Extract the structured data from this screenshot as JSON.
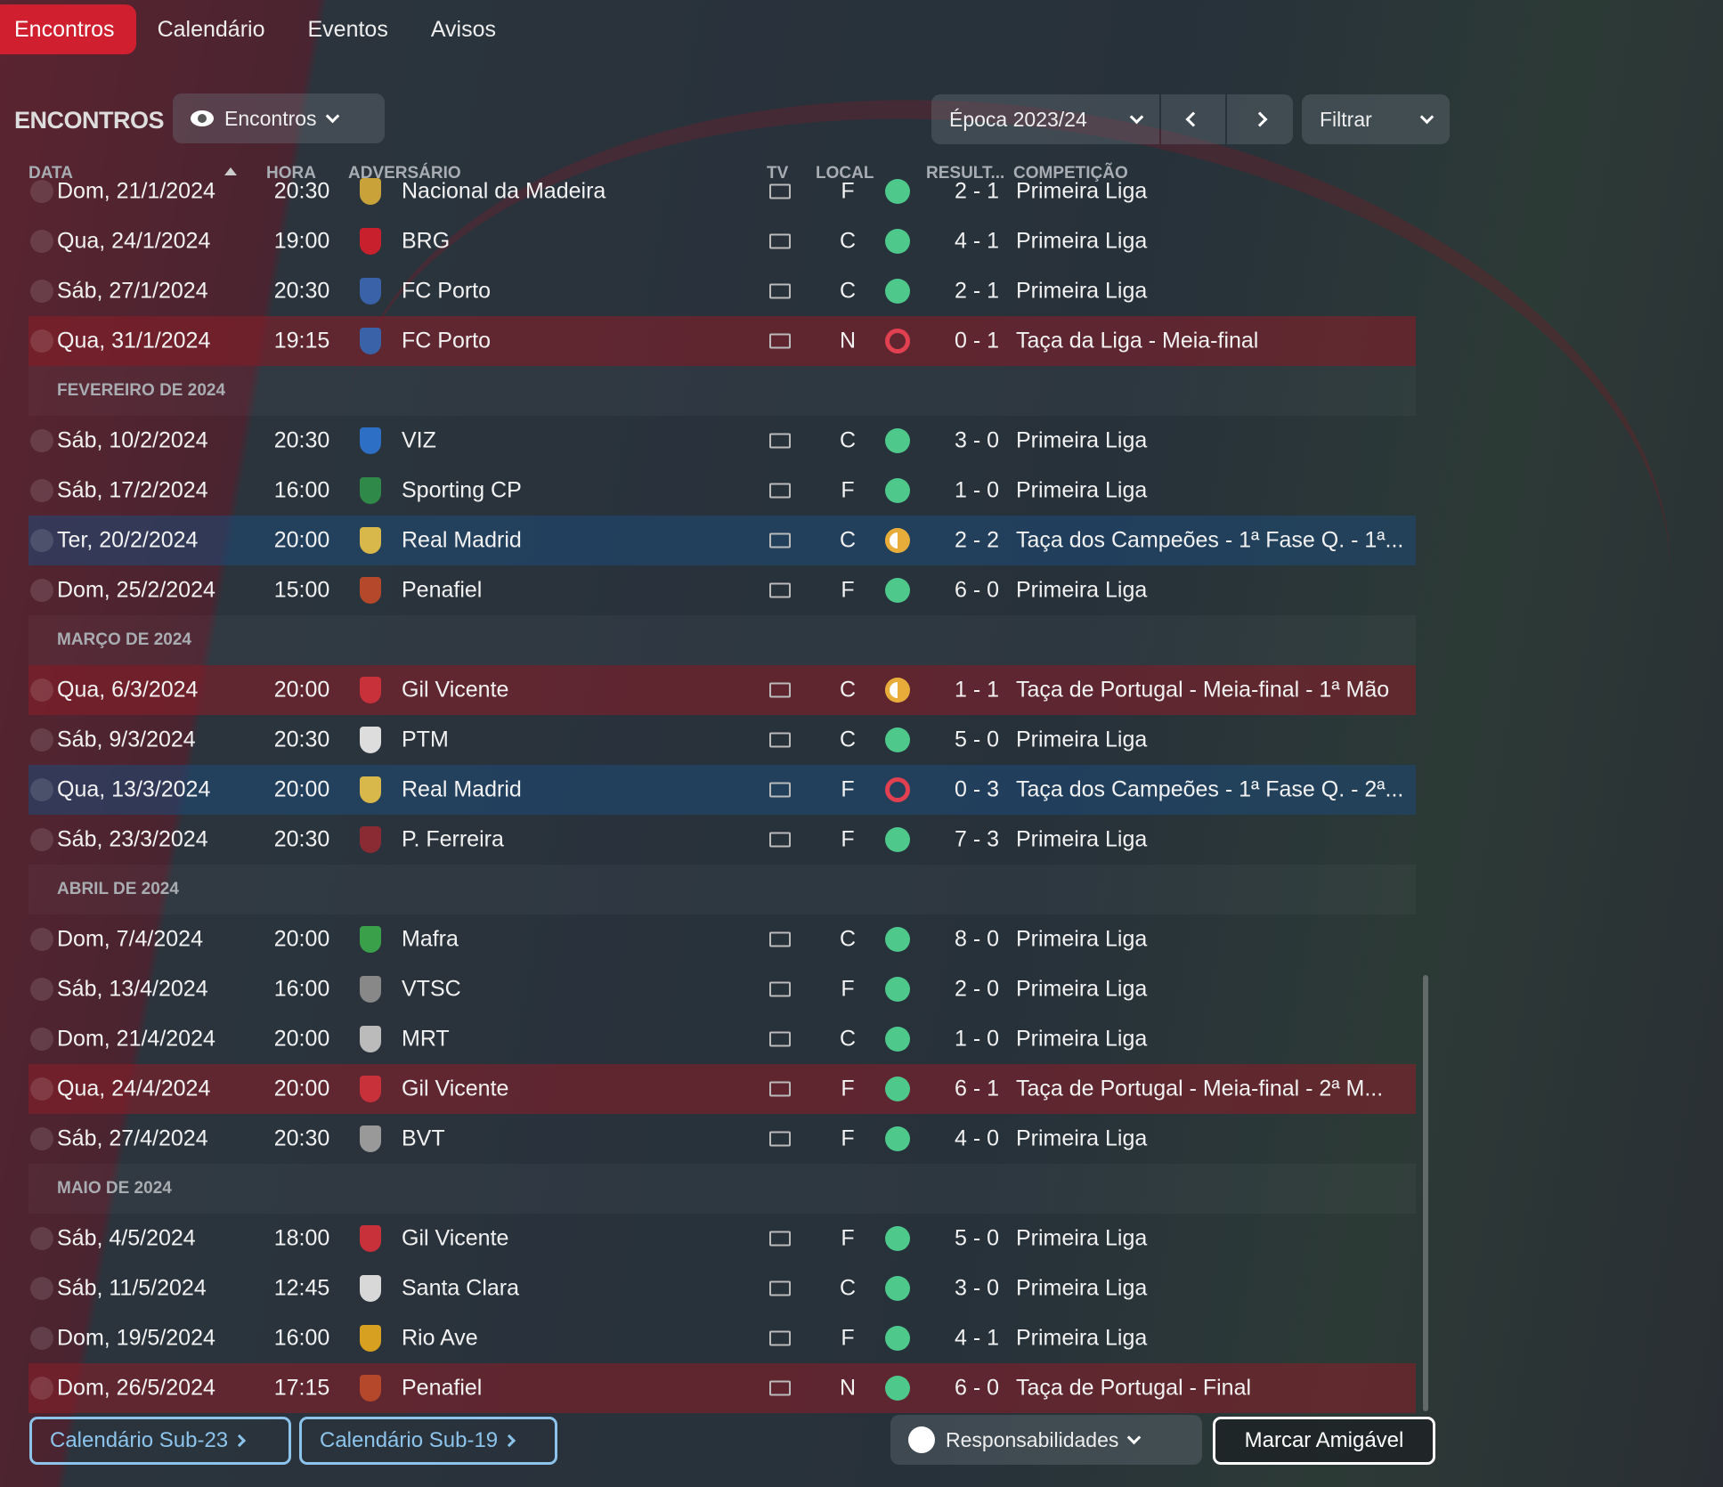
{
  "tabs": [
    "Encontros",
    "Calendário",
    "Eventos",
    "Avisos"
  ],
  "title": "ENCONTROS",
  "view_dropdown": "Encontros",
  "season": "Época 2023/24",
  "filter": "Filtrar",
  "columns": {
    "date": "DATA",
    "time": "HORA",
    "opponent": "ADVERSÁRIO",
    "tv": "TV",
    "venue": "LOCAL",
    "result": "RESULT...",
    "competition": "COMPETIÇÃO"
  },
  "colors": {
    "win": "#4ec98b",
    "draw": "#e7ac3a",
    "loss": "#e04050",
    "accent": "#d01f2e"
  },
  "rows": [
    {
      "date": "Dom, 21/1/2024",
      "time": "20:30",
      "opponent": "Nacional da Madeira",
      "venue": "F",
      "res": "W",
      "score": "2 - 1",
      "comp": "Primeira Liga",
      "logo": "#c9a23a"
    },
    {
      "date": "Qua, 24/1/2024",
      "time": "19:00",
      "opponent": "BRG",
      "venue": "C",
      "res": "W",
      "score": "4 - 1",
      "comp": "Primeira Liga",
      "logo": "#c8202c"
    },
    {
      "date": "Sáb, 27/1/2024",
      "time": "20:30",
      "opponent": "FC Porto",
      "venue": "C",
      "res": "W",
      "score": "2 - 1",
      "comp": "Primeira Liga",
      "logo": "#3a62a8"
    },
    {
      "date": "Qua, 31/1/2024",
      "time": "19:15",
      "opponent": "FC Porto",
      "venue": "N",
      "res": "L",
      "score": "0 - 1",
      "comp": "Taça da Liga - Meia-final",
      "logo": "#3a62a8",
      "tint": "red"
    },
    {
      "month": "FEVEREIRO DE 2024"
    },
    {
      "date": "Sáb, 10/2/2024",
      "time": "20:30",
      "opponent": "VIZ",
      "venue": "C",
      "res": "W",
      "score": "3 - 0",
      "comp": "Primeira Liga",
      "logo": "#2c6fc4"
    },
    {
      "date": "Sáb, 17/2/2024",
      "time": "16:00",
      "opponent": "Sporting CP",
      "venue": "F",
      "res": "W",
      "score": "1 - 0",
      "comp": "Primeira Liga",
      "logo": "#2f8a4a"
    },
    {
      "date": "Ter, 20/2/2024",
      "time": "20:00",
      "opponent": "Real Madrid",
      "venue": "C",
      "res": "D",
      "score": "2 - 2",
      "comp": "Taça dos Campeões - 1ª Fase Q. - 1ª...",
      "logo": "#d8b84a",
      "tint": "blue"
    },
    {
      "date": "Dom, 25/2/2024",
      "time": "15:00",
      "opponent": "Penafiel",
      "venue": "F",
      "res": "W",
      "score": "6 - 0",
      "comp": "Primeira Liga",
      "logo": "#b5482a"
    },
    {
      "month": "MARÇO DE 2024"
    },
    {
      "date": "Qua, 6/3/2024",
      "time": "20:00",
      "opponent": "Gil Vicente",
      "venue": "C",
      "res": "D",
      "score": "1 - 1",
      "comp": "Taça de Portugal - Meia-final - 1ª Mão",
      "logo": "#c8303a",
      "tint": "red"
    },
    {
      "date": "Sáb, 9/3/2024",
      "time": "20:30",
      "opponent": "PTM",
      "venue": "C",
      "res": "W",
      "score": "5 - 0",
      "comp": "Primeira Liga",
      "logo": "#ddd"
    },
    {
      "date": "Qua, 13/3/2024",
      "time": "20:00",
      "opponent": "Real Madrid",
      "venue": "F",
      "res": "L",
      "score": "0 - 3",
      "comp": "Taça dos Campeões - 1ª Fase Q. - 2ª...",
      "logo": "#d8b84a",
      "tint": "blue"
    },
    {
      "date": "Sáb, 23/3/2024",
      "time": "20:30",
      "opponent": "P. Ferreira",
      "venue": "F",
      "res": "W",
      "score": "7 - 3",
      "comp": "Primeira Liga",
      "logo": "#8a2a32"
    },
    {
      "month": "ABRIL DE 2024"
    },
    {
      "date": "Dom, 7/4/2024",
      "time": "20:00",
      "opponent": "Mafra",
      "venue": "C",
      "res": "W",
      "score": "8 - 0",
      "comp": "Primeira Liga",
      "logo": "#3aa04a"
    },
    {
      "date": "Sáb, 13/4/2024",
      "time": "16:00",
      "opponent": "VTSC",
      "venue": "F",
      "res": "W",
      "score": "2 - 0",
      "comp": "Primeira Liga",
      "logo": "#888"
    },
    {
      "date": "Dom, 21/4/2024",
      "time": "20:00",
      "opponent": "MRT",
      "venue": "C",
      "res": "W",
      "score": "1 - 0",
      "comp": "Primeira Liga",
      "logo": "#bbb"
    },
    {
      "date": "Qua, 24/4/2024",
      "time": "20:00",
      "opponent": "Gil Vicente",
      "venue": "F",
      "res": "W",
      "score": "6 - 1",
      "comp": "Taça de Portugal - Meia-final - 2ª M...",
      "logo": "#c8303a",
      "tint": "red"
    },
    {
      "date": "Sáb, 27/4/2024",
      "time": "20:30",
      "opponent": "BVT",
      "venue": "F",
      "res": "W",
      "score": "4 - 0",
      "comp": "Primeira Liga",
      "logo": "#999"
    },
    {
      "month": "MAIO DE 2024"
    },
    {
      "date": "Sáb, 4/5/2024",
      "time": "18:00",
      "opponent": "Gil Vicente",
      "venue": "F",
      "res": "W",
      "score": "5 - 0",
      "comp": "Primeira Liga",
      "logo": "#c8303a"
    },
    {
      "date": "Sáb, 11/5/2024",
      "time": "12:45",
      "opponent": "Santa Clara",
      "venue": "C",
      "res": "W",
      "score": "3 - 0",
      "comp": "Primeira Liga",
      "logo": "#d8d8d8"
    },
    {
      "date": "Dom, 19/5/2024",
      "time": "16:00",
      "opponent": "Rio Ave",
      "venue": "F",
      "res": "W",
      "score": "4 - 1",
      "comp": "Primeira Liga",
      "logo": "#d8a020"
    },
    {
      "date": "Dom, 26/5/2024",
      "time": "17:15",
      "opponent": "Penafiel",
      "venue": "N",
      "res": "W",
      "score": "6 - 0",
      "comp": "Taça de Portugal - Final",
      "logo": "#b5482a",
      "tint": "red"
    }
  ],
  "footer": {
    "sub23": "Calendário Sub-23",
    "sub19": "Calendário Sub-19",
    "responsibilities": "Responsabilidades",
    "friendly": "Marcar Amigável"
  }
}
